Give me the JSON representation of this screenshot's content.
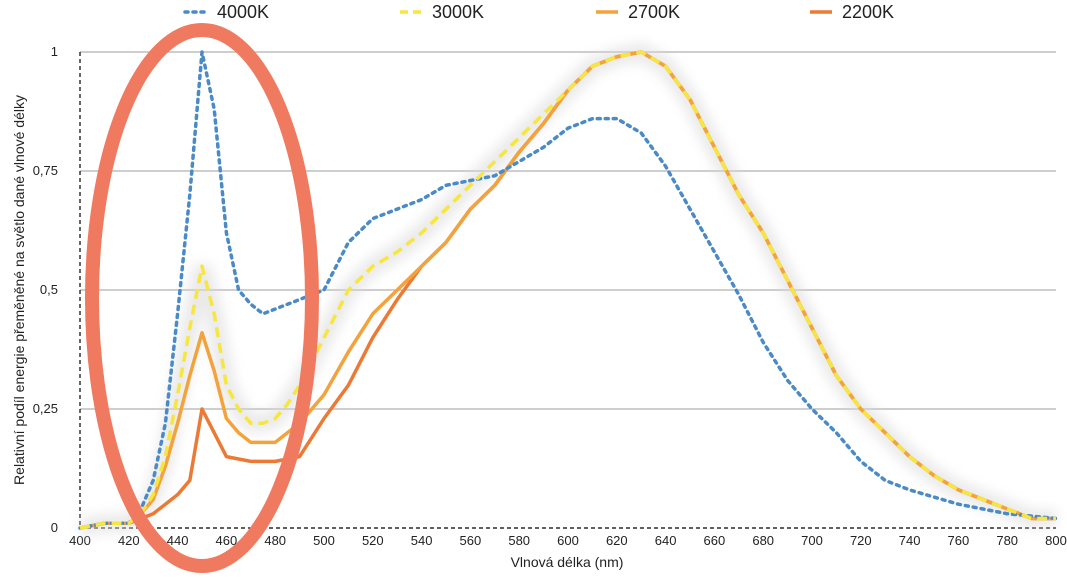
{
  "colors": {
    "s4000": "#4a8ac6",
    "s3000": "#f7e540",
    "s2700": "#f3a23c",
    "s2200": "#ec7a35",
    "highlight": "#f07a5f",
    "grid": "#bdbdbd",
    "axis": "#000000"
  },
  "chart_data": {
    "type": "line",
    "title": "",
    "xlabel": "Vlnová délka (nm)",
    "ylabel": "Relativní podíl energie přeměněné na světlo dané vlnové délky",
    "xlim": [
      400,
      800
    ],
    "ylim": [
      0,
      1
    ],
    "grid": true,
    "legend_position": "top",
    "x_ticks": [
      "400",
      "420",
      "440",
      "460",
      "480",
      "500",
      "520",
      "540",
      "560",
      "580",
      "600",
      "620",
      "640",
      "660",
      "680",
      "700",
      "720",
      "740",
      "760",
      "780",
      "800"
    ],
    "y_ticks": [
      {
        "value": 0,
        "label": "0"
      },
      {
        "value": 0.25,
        "label": "0,25"
      },
      {
        "value": 0.5,
        "label": "0,5"
      },
      {
        "value": 0.75,
        "label": "0,75"
      },
      {
        "value": 1,
        "label": "1"
      }
    ],
    "x": [
      400,
      405,
      410,
      415,
      420,
      425,
      430,
      435,
      440,
      445,
      450,
      455,
      460,
      465,
      470,
      475,
      480,
      485,
      490,
      495,
      500,
      510,
      520,
      530,
      540,
      550,
      560,
      570,
      580,
      590,
      600,
      610,
      620,
      630,
      640,
      650,
      660,
      670,
      680,
      690,
      700,
      710,
      720,
      730,
      740,
      750,
      760,
      770,
      780,
      790,
      800
    ],
    "series": [
      {
        "name": "4000K",
        "color_key": "s4000",
        "style": "dotted",
        "values": [
          0,
          0.005,
          0.01,
          0.01,
          0.01,
          0.04,
          0.1,
          0.22,
          0.45,
          0.7,
          1.0,
          0.88,
          0.62,
          0.5,
          0.47,
          0.45,
          0.46,
          0.47,
          0.48,
          0.49,
          0.5,
          0.6,
          0.65,
          0.67,
          0.69,
          0.72,
          0.73,
          0.74,
          0.77,
          0.8,
          0.84,
          0.86,
          0.86,
          0.83,
          0.76,
          0.67,
          0.58,
          0.49,
          0.39,
          0.31,
          0.25,
          0.2,
          0.14,
          0.1,
          0.08,
          0.065,
          0.05,
          0.04,
          0.03,
          0.025,
          0.02
        ]
      },
      {
        "name": "3000K",
        "color_key": "s3000",
        "style": "dashed",
        "values": [
          0,
          0.005,
          0.01,
          0.01,
          0.01,
          0.03,
          0.07,
          0.15,
          0.28,
          0.42,
          0.55,
          0.45,
          0.3,
          0.25,
          0.22,
          0.22,
          0.23,
          0.26,
          0.3,
          0.35,
          0.4,
          0.5,
          0.55,
          0.58,
          0.62,
          0.67,
          0.72,
          0.77,
          0.82,
          0.87,
          0.92,
          0.97,
          0.99,
          1.0,
          0.97,
          0.9,
          0.8,
          0.7,
          0.62,
          0.52,
          0.42,
          0.32,
          0.25,
          0.2,
          0.15,
          0.11,
          0.08,
          0.06,
          0.04,
          0.02,
          0.02
        ]
      },
      {
        "name": "2700K",
        "color_key": "s2700",
        "style": "solid",
        "values": [
          0,
          0.005,
          0.01,
          0.01,
          0.01,
          0.03,
          0.06,
          0.13,
          0.22,
          0.32,
          0.41,
          0.33,
          0.23,
          0.2,
          0.18,
          0.18,
          0.18,
          0.2,
          0.22,
          0.25,
          0.28,
          0.37,
          0.45,
          0.5,
          0.55,
          0.6,
          0.67,
          0.72,
          0.79,
          0.85,
          0.92,
          0.97,
          0.99,
          1.0,
          0.97,
          0.9,
          0.8,
          0.7,
          0.62,
          0.52,
          0.42,
          0.32,
          0.25,
          0.2,
          0.15,
          0.11,
          0.08,
          0.06,
          0.04,
          0.02,
          0.02
        ]
      },
      {
        "name": "2200K",
        "color_key": "s2200",
        "style": "solid",
        "values": [
          0,
          0.005,
          0.01,
          0.01,
          0.01,
          0.02,
          0.03,
          0.05,
          0.07,
          0.1,
          0.25,
          0.2,
          0.15,
          0.145,
          0.14,
          0.14,
          0.14,
          0.145,
          0.15,
          0.19,
          0.23,
          0.3,
          0.4,
          0.48,
          0.55,
          0.6,
          0.67,
          0.72,
          0.79,
          0.85,
          0.92,
          0.97,
          0.99,
          1.0,
          0.97,
          0.9,
          0.8,
          0.7,
          0.62,
          0.52,
          0.42,
          0.32,
          0.25,
          0.2,
          0.15,
          0.11,
          0.08,
          0.06,
          0.04,
          0.02,
          0.02
        ]
      }
    ]
  }
}
